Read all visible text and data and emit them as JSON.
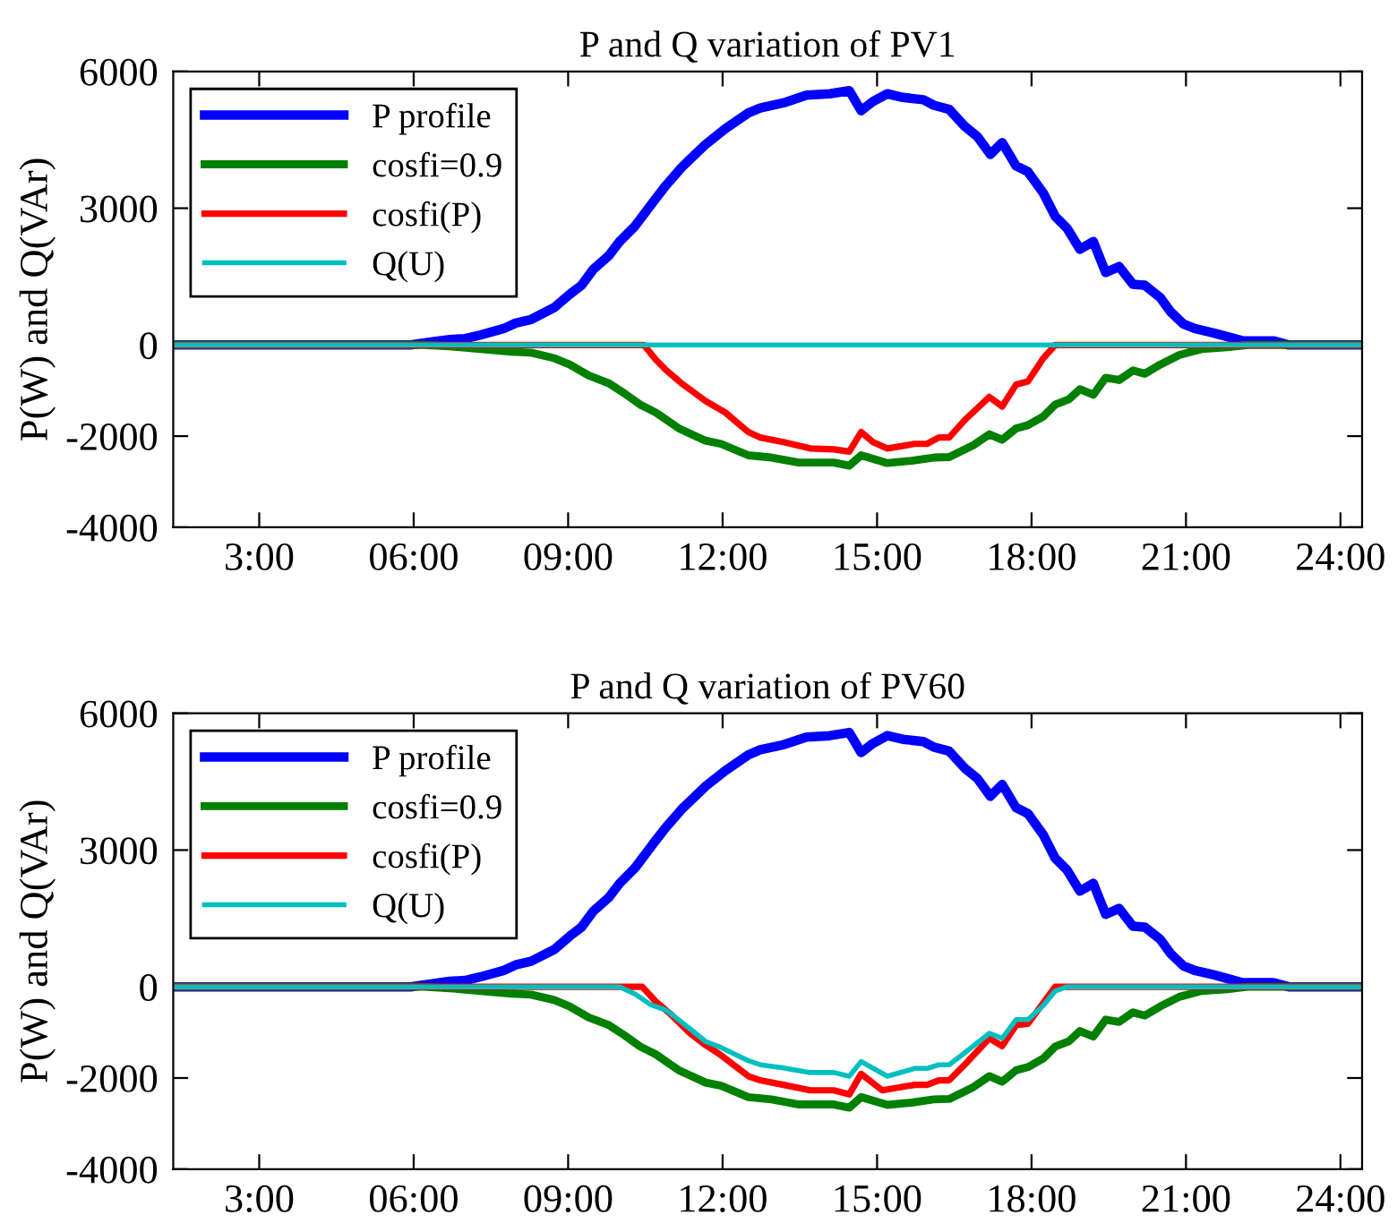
{
  "chart_data": [
    {
      "type": "line",
      "title": "P and Q variation of PV1",
      "ylabel": "P(W) and Q(VAr)",
      "xlim": [
        1.33,
        24.42
      ],
      "ylim": [
        -4000,
        6000
      ],
      "xticks": [
        {
          "value": 3,
          "label": "3:00"
        },
        {
          "value": 6,
          "label": "06:00"
        },
        {
          "value": 9,
          "label": "09:00"
        },
        {
          "value": 12,
          "label": "12:00"
        },
        {
          "value": 15,
          "label": "15:00"
        },
        {
          "value": 18,
          "label": "18:00"
        },
        {
          "value": 21,
          "label": "21:00"
        },
        {
          "value": 24,
          "label": "24:00"
        }
      ],
      "yticks": [
        6000,
        3000,
        0,
        -2000,
        -4000
      ],
      "grid": false,
      "legend": "top left",
      "marker": "none",
      "line_style": "solid",
      "series": [
        {
          "name": "P profile",
          "color": "#0000ff",
          "x": [
            1.33,
            5.94,
            6.24,
            6.7,
            7.0,
            7.3,
            7.75,
            7.98,
            8.28,
            8.73,
            9.03,
            9.26,
            9.49,
            9.79,
            10.0,
            10.3,
            10.7,
            10.9,
            11.2,
            11.67,
            12.05,
            12.5,
            12.73,
            13.18,
            13.63,
            14.08,
            14.46,
            14.69,
            14.92,
            15.2,
            15.5,
            15.9,
            16.1,
            16.4,
            16.7,
            16.95,
            17.2,
            17.43,
            17.7,
            17.93,
            18.23,
            18.46,
            18.69,
            18.94,
            19.2,
            19.44,
            19.7,
            19.97,
            20.2,
            20.5,
            20.7,
            20.95,
            21.17,
            21.55,
            22.1,
            22.7,
            23.0,
            24.42
          ],
          "values": [
            0,
            0,
            50,
            120,
            140,
            220,
            360,
            480,
            560,
            820,
            1110,
            1310,
            1660,
            1960,
            2270,
            2610,
            3210,
            3500,
            3890,
            4400,
            4740,
            5090,
            5200,
            5310,
            5480,
            5510,
            5580,
            5140,
            5340,
            5510,
            5430,
            5380,
            5260,
            5170,
            4800,
            4570,
            4180,
            4440,
            3930,
            3800,
            3330,
            2820,
            2560,
            2100,
            2270,
            1590,
            1720,
            1330,
            1310,
            1040,
            730,
            460,
            360,
            260,
            90,
            90,
            0,
            0
          ]
        },
        {
          "name": "cosfi=0.9",
          "color": "#008000",
          "x": [
            1.33,
            6.2,
            6.7,
            7.3,
            7.9,
            8.28,
            8.73,
            9.03,
            9.4,
            9.79,
            10.09,
            10.4,
            10.7,
            11.15,
            11.67,
            11.97,
            12.5,
            12.95,
            13.48,
            14.16,
            14.46,
            14.69,
            15.2,
            15.67,
            16.1,
            16.4,
            16.87,
            17.18,
            17.43,
            17.7,
            17.93,
            18.23,
            18.46,
            18.73,
            18.94,
            19.2,
            19.44,
            19.7,
            19.97,
            20.2,
            20.5,
            20.87,
            21.3,
            21.8,
            22.2,
            24.42
          ],
          "values": [
            0,
            0,
            -30,
            -90,
            -150,
            -170,
            -290,
            -430,
            -670,
            -840,
            -1060,
            -1310,
            -1480,
            -1830,
            -2100,
            -2170,
            -2420,
            -2470,
            -2580,
            -2580,
            -2650,
            -2420,
            -2590,
            -2540,
            -2470,
            -2460,
            -2200,
            -1960,
            -2080,
            -1830,
            -1760,
            -1570,
            -1310,
            -1190,
            -970,
            -1090,
            -720,
            -770,
            -560,
            -630,
            -430,
            -220,
            -90,
            -50,
            0,
            0
          ]
        },
        {
          "name": "cosfi(P)",
          "color": "#ff0000",
          "x": [
            1.33,
            10.47,
            10.7,
            10.9,
            11.2,
            11.67,
            12.05,
            12.5,
            12.73,
            13.18,
            13.7,
            14.16,
            14.46,
            14.69,
            14.92,
            15.2,
            15.73,
            15.97,
            16.2,
            16.4,
            16.7,
            17.18,
            17.43,
            17.7,
            17.93,
            18.23,
            18.46,
            24.42
          ],
          "values": [
            0,
            0,
            -320,
            -550,
            -840,
            -1230,
            -1480,
            -1910,
            -2030,
            -2130,
            -2270,
            -2290,
            -2340,
            -1910,
            -2130,
            -2270,
            -2170,
            -2170,
            -2030,
            -2030,
            -1650,
            -1140,
            -1350,
            -870,
            -800,
            -290,
            0,
            0
          ]
        },
        {
          "name": "Q(U)",
          "color": "#00bfbf",
          "x": [
            1.33,
            24.42
          ],
          "values": [
            0,
            0
          ]
        }
      ]
    },
    {
      "type": "line",
      "title": "P and Q variation of PV60",
      "ylabel": "P(W) and Q(VAr)",
      "xlim": [
        1.33,
        24.42
      ],
      "ylim": [
        -4000,
        6000
      ],
      "xticks": [
        {
          "value": 3,
          "label": "3:00"
        },
        {
          "value": 6,
          "label": "06:00"
        },
        {
          "value": 9,
          "label": "09:00"
        },
        {
          "value": 12,
          "label": "12:00"
        },
        {
          "value": 15,
          "label": "15:00"
        },
        {
          "value": 18,
          "label": "18:00"
        },
        {
          "value": 21,
          "label": "21:00"
        },
        {
          "value": 24,
          "label": "24:00"
        }
      ],
      "yticks": [
        6000,
        3000,
        0,
        -2000,
        -4000
      ],
      "grid": false,
      "legend": "top left",
      "marker": "none",
      "line_style": "solid",
      "series": [
        {
          "name": "P profile",
          "color": "#0000ff",
          "x": [
            1.33,
            5.94,
            6.24,
            6.7,
            7.0,
            7.3,
            7.75,
            7.98,
            8.28,
            8.73,
            9.03,
            9.26,
            9.49,
            9.79,
            10.0,
            10.3,
            10.7,
            10.9,
            11.2,
            11.67,
            12.05,
            12.5,
            12.73,
            13.18,
            13.63,
            14.08,
            14.46,
            14.69,
            14.92,
            15.2,
            15.5,
            15.9,
            16.1,
            16.4,
            16.7,
            16.95,
            17.2,
            17.43,
            17.7,
            17.93,
            18.23,
            18.46,
            18.69,
            18.94,
            19.2,
            19.44,
            19.7,
            19.97,
            20.2,
            20.5,
            20.7,
            20.95,
            21.17,
            21.55,
            22.1,
            22.7,
            23.0,
            24.42
          ],
          "values": [
            0,
            0,
            50,
            120,
            140,
            220,
            360,
            480,
            560,
            820,
            1110,
            1310,
            1660,
            1960,
            2270,
            2610,
            3210,
            3500,
            3890,
            4400,
            4740,
            5090,
            5200,
            5310,
            5480,
            5510,
            5580,
            5140,
            5340,
            5510,
            5430,
            5380,
            5260,
            5170,
            4800,
            4570,
            4180,
            4440,
            3930,
            3800,
            3330,
            2820,
            2560,
            2100,
            2270,
            1590,
            1720,
            1330,
            1310,
            1040,
            730,
            460,
            360,
            260,
            90,
            90,
            0,
            0
          ]
        },
        {
          "name": "cosfi=0.9",
          "color": "#008000",
          "x": [
            1.33,
            6.2,
            6.7,
            7.3,
            7.9,
            8.28,
            8.73,
            9.03,
            9.4,
            9.79,
            10.09,
            10.4,
            10.7,
            11.15,
            11.67,
            11.97,
            12.5,
            12.95,
            13.48,
            14.16,
            14.46,
            14.69,
            15.2,
            15.67,
            16.1,
            16.4,
            16.87,
            17.18,
            17.43,
            17.7,
            17.93,
            18.23,
            18.46,
            18.73,
            18.94,
            19.2,
            19.44,
            19.7,
            19.97,
            20.2,
            20.5,
            20.87,
            21.3,
            21.8,
            22.2,
            24.42
          ],
          "values": [
            0,
            0,
            -30,
            -90,
            -150,
            -170,
            -290,
            -430,
            -670,
            -840,
            -1060,
            -1310,
            -1480,
            -1830,
            -2100,
            -2170,
            -2420,
            -2470,
            -2580,
            -2580,
            -2650,
            -2420,
            -2590,
            -2540,
            -2470,
            -2460,
            -2200,
            -1960,
            -2080,
            -1830,
            -1760,
            -1570,
            -1310,
            -1190,
            -970,
            -1090,
            -720,
            -770,
            -560,
            -630,
            -430,
            -220,
            -90,
            -50,
            0,
            0
          ]
        },
        {
          "name": "cosfi(P)",
          "color": "#ff0000",
          "x": [
            1.33,
            10.44,
            10.7,
            10.97,
            11.37,
            11.67,
            11.97,
            12.5,
            12.73,
            13.18,
            13.7,
            14.16,
            14.46,
            14.69,
            15.1,
            15.73,
            15.97,
            16.2,
            16.4,
            16.7,
            17.18,
            17.43,
            17.7,
            17.93,
            18.46,
            24.42
          ],
          "values": [
            0,
            0,
            -320,
            -580,
            -1020,
            -1280,
            -1500,
            -1960,
            -2050,
            -2150,
            -2270,
            -2270,
            -2360,
            -1910,
            -2270,
            -2150,
            -2150,
            -2050,
            -2050,
            -1710,
            -1130,
            -1300,
            -840,
            -810,
            0,
            0
          ]
        },
        {
          "name": "Q(U)",
          "color": "#00bfbf",
          "x": [
            1.33,
            10.0,
            10.3,
            10.6,
            10.9,
            11.2,
            11.67,
            11.97,
            12.5,
            12.73,
            13.18,
            13.7,
            14.16,
            14.46,
            14.69,
            15.2,
            15.73,
            15.97,
            16.2,
            16.4,
            16.7,
            17.18,
            17.43,
            17.7,
            17.93,
            18.23,
            18.46,
            18.69,
            24.42
          ],
          "values": [
            0,
            0,
            -160,
            -390,
            -510,
            -770,
            -1200,
            -1330,
            -1620,
            -1710,
            -1780,
            -1880,
            -1880,
            -1960,
            -1640,
            -1960,
            -1790,
            -1790,
            -1710,
            -1710,
            -1450,
            -1020,
            -1130,
            -720,
            -720,
            -410,
            -90,
            0,
            0
          ]
        }
      ]
    }
  ]
}
